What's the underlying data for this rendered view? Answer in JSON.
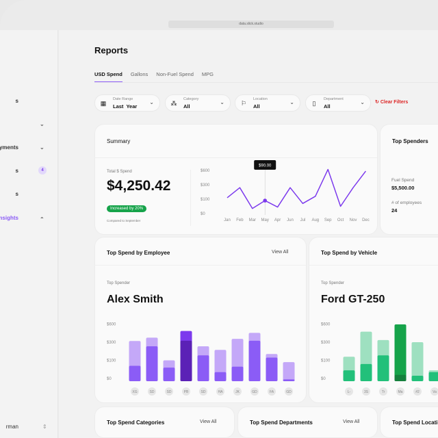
{
  "browser": {
    "url": "data.slick.studio"
  },
  "sidebar": {
    "items": [
      {
        "label": "s",
        "chevron": ""
      },
      {
        "label": "",
        "chevron": "down"
      },
      {
        "label": "yments",
        "chevron": "down"
      },
      {
        "label": "s",
        "badge": "4"
      },
      {
        "label": "s"
      },
      {
        "label": "nsights",
        "chevron": "up",
        "active": true
      }
    ],
    "user": {
      "name": "rman"
    }
  },
  "page": {
    "title": "Reports",
    "tabs": [
      {
        "label": "USD Spend",
        "active": true
      },
      {
        "label": "Gallons"
      },
      {
        "label": "Non-Fuel Spend"
      },
      {
        "label": "MPG"
      }
    ]
  },
  "filters": [
    {
      "label": "Date Range",
      "value": "Last  Year",
      "icon": "calendar-icon"
    },
    {
      "label": "Category",
      "value": "All",
      "icon": "category-icon"
    },
    {
      "label": "Location",
      "value": "All",
      "icon": "flag-icon"
    },
    {
      "label": "Department",
      "value": "All",
      "icon": "department-icon"
    }
  ],
  "clear_filters": "Clear Filters",
  "summary": {
    "title": "Summary",
    "total_label": "Total $ Spend",
    "total": "$4,250.42",
    "change": "Increased by 20%",
    "compared": "Compared to September",
    "tooltip": "$90.00"
  },
  "top_spenders": {
    "title": "Top Spenders",
    "fuel_label": "Fuel Spend",
    "fuel_value": "$5,500.00",
    "emp_label": "# of employees",
    "emp_value": "24"
  },
  "employee_card": {
    "title": "Top Spend by Employee",
    "view_all": "View All",
    "sub": "Top Spender",
    "name": "Alex Smith"
  },
  "vehicle_card": {
    "title": "Top Spend by Vehicle",
    "sub": "Top Spender",
    "name": "Ford GT-250"
  },
  "bottom_cards": [
    {
      "title": "Top Spend Categories",
      "view_all": "View All"
    },
    {
      "title": "Top Spend Departments",
      "view_all": "View All"
    },
    {
      "title": "Top Spend Locati"
    }
  ],
  "colors": {
    "accent": "#7c3aed",
    "green": "#16a34a",
    "danger": "#dc2626"
  },
  "chart_data": [
    {
      "type": "line",
      "yticks": [
        "$600",
        "$300",
        "$100",
        "$0"
      ],
      "categories": [
        "Jan",
        "Feb",
        "Mar",
        "May",
        "Apr",
        "Jun",
        "Jul",
        "Aug",
        "Sep",
        "Oct",
        "Nov",
        "Dec"
      ],
      "values": [
        120,
        260,
        35,
        90,
        45,
        260,
        70,
        140,
        620,
        50,
        260,
        585
      ],
      "highlight_index": 3,
      "color": "#7c3aed"
    },
    {
      "type": "bar",
      "stacked": true,
      "yticks": [
        "$600",
        "$300",
        "$100",
        "$0"
      ],
      "categories": [
        "XG",
        "SD",
        "SD",
        "PB",
        "SD",
        "HA",
        "JK",
        "GD",
        "FA",
        "GD"
      ],
      "series": [
        {
          "values": [
            85,
            285,
            75,
            370,
            185,
            50,
            80,
            370,
            160,
            10
          ]
        },
        {
          "values": [
            365,
            420,
            130,
            530,
            285,
            245,
            400,
            500,
            200,
            110
          ]
        }
      ],
      "highlight_index": 3,
      "colors": [
        "#8b5cf6",
        "#c4a8f8",
        "#5b21b6",
        "#7c3aed"
      ]
    },
    {
      "type": "bar",
      "stacked": true,
      "yticks": [
        "$600",
        "$300",
        "$100",
        "$0"
      ],
      "categories": [
        "L-",
        "3S",
        "Tr",
        "Ma",
        "#2",
        "Va"
      ],
      "series": [
        {
          "values": [
            60,
            95,
            185,
            35,
            30,
            50
          ]
        },
        {
          "values": [
            170,
            520,
            380,
            640,
            345,
            60
          ]
        }
      ],
      "highlight_index": 3,
      "colors": [
        "#22c07a",
        "#9ee0c0",
        "#15803d",
        "#16a34a"
      ]
    }
  ]
}
